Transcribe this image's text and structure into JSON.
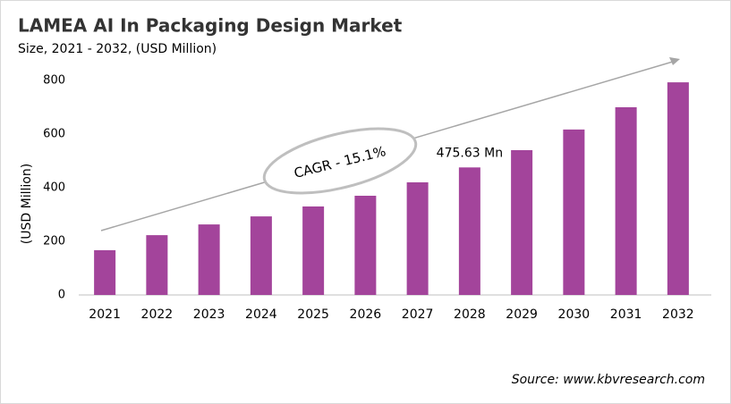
{
  "chart_data": {
    "type": "bar",
    "title": "LAMEA AI In Packaging Design Market",
    "subtitle": "Size, 2021 - 2032, (USD Million)",
    "y_label": "(USD Million)",
    "categories": [
      "2021",
      "2022",
      "2023",
      "2024",
      "2025",
      "2026",
      "2027",
      "2028",
      "2029",
      "2030",
      "2031",
      "2032"
    ],
    "values": [
      167,
      223,
      263,
      293,
      330,
      370,
      420,
      475.63,
      540,
      617,
      700,
      793
    ],
    "value_labels": [
      null,
      null,
      null,
      null,
      null,
      null,
      null,
      "475.63 Mn",
      null,
      null,
      null,
      null
    ],
    "color": "#a3449b",
    "ylim": [
      0,
      800
    ],
    "yticks": [
      0,
      200,
      400,
      600,
      800
    ],
    "grid": false,
    "annotation": "CAGR - 15.1%",
    "source": "Source: www.kbvresearch.com"
  }
}
